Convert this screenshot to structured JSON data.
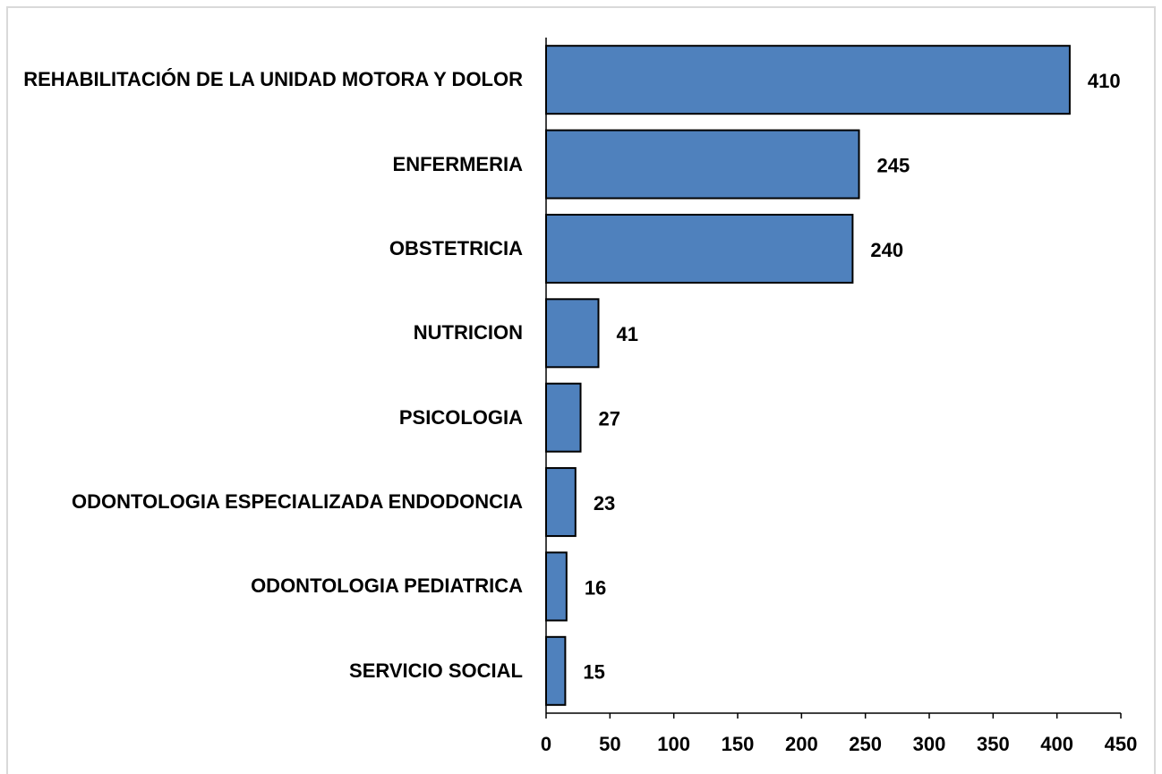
{
  "chart_data": {
    "type": "bar",
    "orientation": "horizontal",
    "categories": [
      "REHABILITACIÓN DE LA UNIDAD MOTORA Y DOLOR",
      "ENFERMERIA",
      "OBSTETRICIA",
      "NUTRICION",
      "PSICOLOGIA",
      "ODONTOLOGIA ESPECIALIZADA ENDODONCIA",
      "ODONTOLOGIA PEDIATRICA",
      "SERVICIO SOCIAL"
    ],
    "values": [
      410,
      245,
      240,
      41,
      27,
      23,
      16,
      15
    ],
    "color": "#4f81bd",
    "xlim": [
      0,
      450
    ],
    "xticks": [
      0,
      50,
      100,
      150,
      200,
      250,
      300,
      350,
      400,
      450
    ],
    "grid": false
  }
}
